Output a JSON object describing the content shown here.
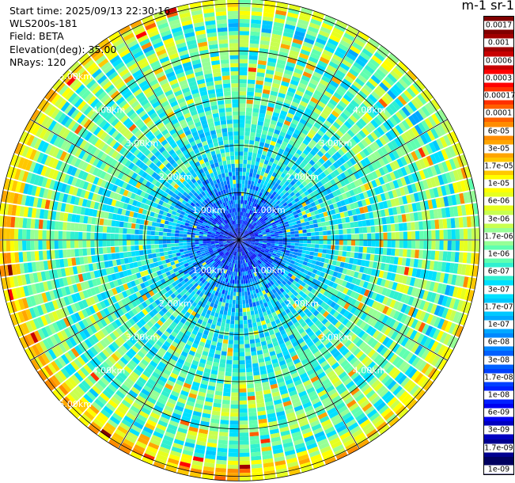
{
  "info": {
    "start_time": "Start time: 2025/09/13 22:30:16",
    "instrument": "WLS200s-181",
    "field": "Field: BETA",
    "elevation": "Elevation(deg): 35.00",
    "nrays": "NRays: 120"
  },
  "colorbar": {
    "title": "m-1 sr-1",
    "labels": [
      "0.0017",
      "0.001",
      "0.0006",
      "0.0003",
      "0.00017",
      "0.0001",
      "6e-05",
      "3e-05",
      "1.7e-05",
      "1e-05",
      "6e-06",
      "3e-06",
      "1.7e-06",
      "1e-06",
      "6e-07",
      "3e-07",
      "1.7e-07",
      "1e-07",
      "6e-08",
      "3e-08",
      "1.7e-08",
      "1e-08",
      "6e-09",
      "3e-09",
      "1.7e-09",
      "1e-09"
    ],
    "colors": [
      "#800000",
      "#a00000",
      "#c80000",
      "#ff0000",
      "#ff3000",
      "#ff6000",
      "#ff8c00",
      "#ffa500",
      "#ffc800",
      "#ffff00",
      "#e6ff20",
      "#c8ff50",
      "#96ff96",
      "#60ffb0",
      "#30f0d0",
      "#00e0ff",
      "#00c8ff",
      "#00a8ff",
      "#0088ff",
      "#0060ff",
      "#0040ff",
      "#0020ff",
      "#0000f0",
      "#0000c0",
      "#000090",
      "#000060"
    ]
  },
  "chart_data": {
    "type": "heatmap",
    "projection": "polar PPI",
    "field": "BETA",
    "elevation_deg": 35.0,
    "nrays": 120,
    "range_rings_km": [
      1.0,
      2.0,
      3.0,
      4.0,
      5.0
    ],
    "ring_labels": [
      "1.00km",
      "2.00km",
      "3.00km",
      "4.00km",
      "5.00km"
    ],
    "max_range_km": 5.1,
    "colorscale": "log",
    "value_range": [
      1e-09,
      0.0017
    ]
  }
}
